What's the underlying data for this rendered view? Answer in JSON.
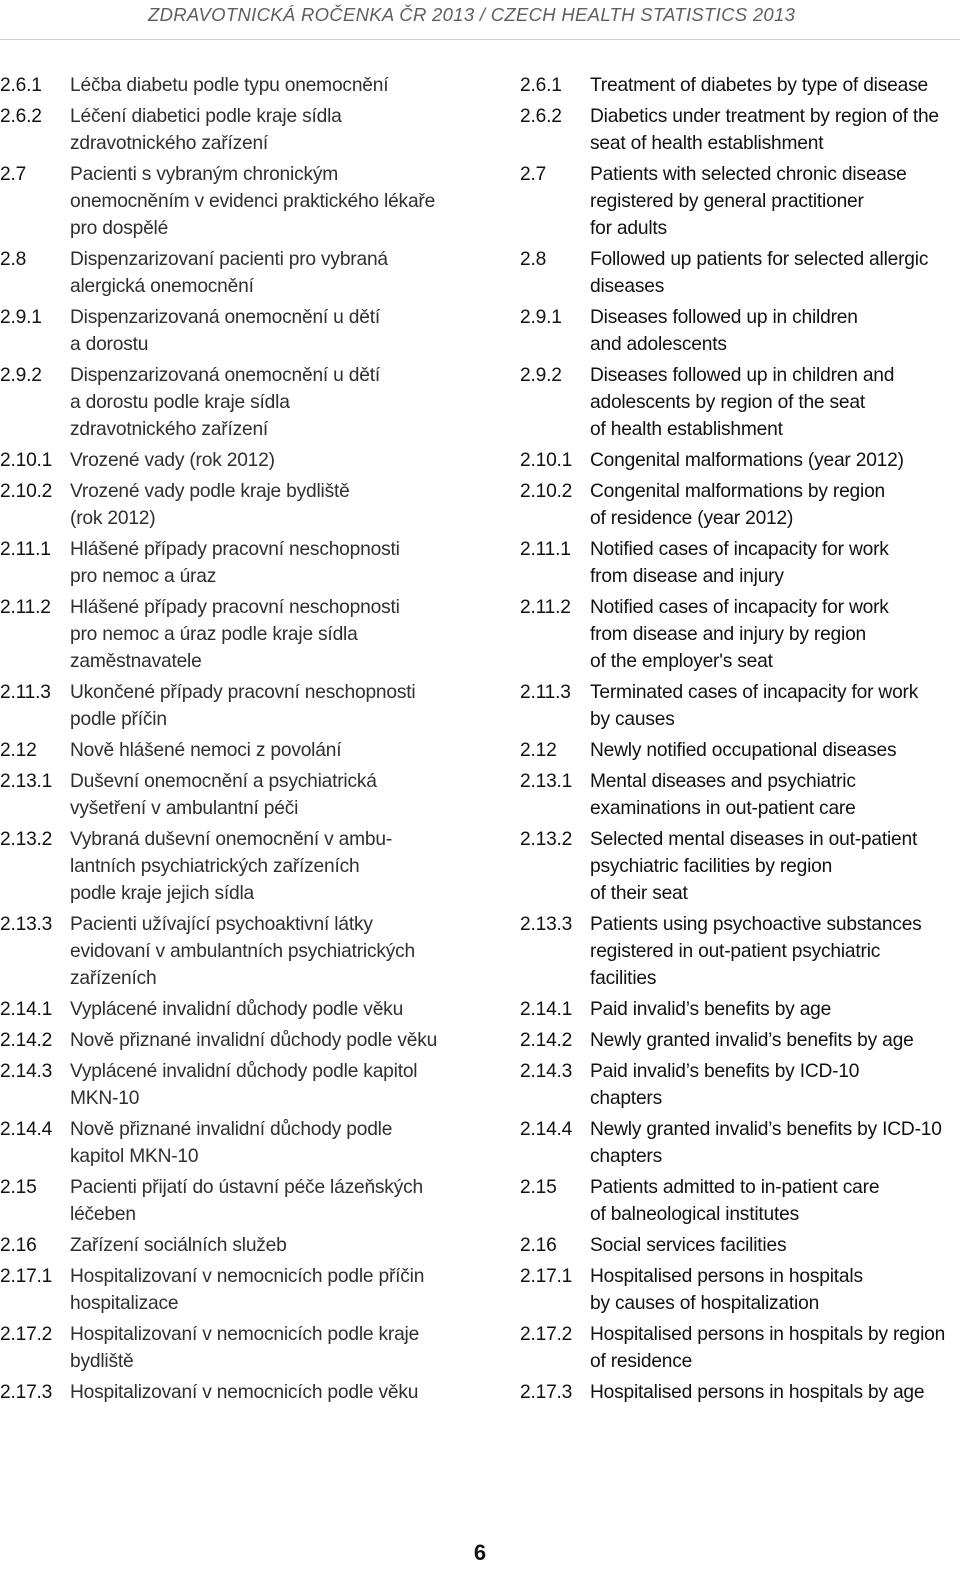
{
  "header": {
    "title": "ZDRAVOTNICKÁ ROČENKA ČR 2013 / CZECH HEALTH STATISTICS 2013"
  },
  "toc": [
    {
      "cz_num": "2.6.1",
      "cz_title": "Léčba diabetu podle typu onemocnění",
      "en_num": "2.6.1",
      "en_title": "Treatment of diabetes by type of disease"
    },
    {
      "cz_num": "2.6.2",
      "cz_title": "Léčení diabetici podle kraje sídla\nzdravotnického zařízení",
      "en_num": "2.6.2",
      "en_title": "Diabetics under treatment by region of the\nseat of health establishment"
    },
    {
      "cz_num": "2.7",
      "cz_title": "Pacienti s vybraným chronickým\nonemocněním v evidenci praktického lékaře\npro dospělé",
      "en_num": "2.7",
      "en_title": "Patients with selected chronic disease\nregistered by general practitioner\nfor adults"
    },
    {
      "cz_num": "2.8",
      "cz_title": "Dispenzarizovaní pacienti pro vybraná\nalergická onemocnění",
      "en_num": "2.8",
      "en_title": "Followed up patients for selected allergic\ndiseases"
    },
    {
      "cz_num": "2.9.1",
      "cz_title": "Dispenzarizovaná onemocnění u dětí\na dorostu",
      "en_num": "2.9.1",
      "en_title": "Diseases followed up in children\nand adolescents"
    },
    {
      "cz_num": "2.9.2",
      "cz_title": "Dispenzarizovaná onemocnění u dětí\na dorostu podle kraje sídla\nzdravotnického zařízení",
      "en_num": "2.9.2",
      "en_title": "Diseases followed up in children and\nadolescents by region of the seat\nof health establishment"
    },
    {
      "cz_num": "2.10.1",
      "cz_title": "Vrozené vady (rok 2012)",
      "en_num": "2.10.1",
      "en_title": "Congenital malformations (year 2012)"
    },
    {
      "cz_num": "2.10.2",
      "cz_title": "Vrozené vady podle kraje bydliště\n(rok 2012)",
      "en_num": "2.10.2",
      "en_title": "Congenital malformations by region\nof residence (year 2012)"
    },
    {
      "cz_num": "2.11.1",
      "cz_title": "Hlášené případy pracovní neschopnosti\npro nemoc a úraz",
      "en_num": "2.11.1",
      "en_title": "Notified cases of incapacity for work\nfrom disease and injury"
    },
    {
      "cz_num": "2.11.2",
      "cz_title": "Hlášené případy pracovní neschopnosti\npro nemoc a úraz podle kraje sídla\nzaměstnavatele",
      "en_num": "2.11.2",
      "en_title": "Notified cases of incapacity for work\nfrom disease and injury by region\nof the employer's seat"
    },
    {
      "cz_num": "2.11.3",
      "cz_title": "Ukončené případy pracovní neschopnosti\npodle příčin",
      "en_num": "2.11.3",
      "en_title": "Terminated cases of incapacity for work\nby causes"
    },
    {
      "cz_num": "2.12",
      "cz_title": "Nově hlášené nemoci z povolání",
      "en_num": "2.12",
      "en_title": "Newly notified occupational diseases"
    },
    {
      "cz_num": "2.13.1",
      "cz_title": "Duševní onemocnění a psychiatrická\nvyšetření v ambulantní péči",
      "en_num": "2.13.1",
      "en_title": "Mental diseases and psychiatric\nexaminations in out-patient care"
    },
    {
      "cz_num": "2.13.2",
      "cz_title": "Vybraná duševní onemocnění v ambu-\nlantních psychiatrických zařízeních\npodle kraje jejich sídla",
      "en_num": "2.13.2",
      "en_title": "Selected mental diseases in out-patient\npsychiatric facilities by region\nof their seat"
    },
    {
      "cz_num": "2.13.3",
      "cz_title": "Pacienti užívající psychoaktivní látky\nevidovaní v ambulantních psychiatrických\nzařízeních",
      "en_num": "2.13.3",
      "en_title": "Patients using psychoactive substances\nregistered in out-patient psychiatric\nfacilities"
    },
    {
      "cz_num": "2.14.1",
      "cz_title": "Vyplácené invalidní důchody podle věku",
      "en_num": "2.14.1",
      "en_title": "Paid invalid’s benefits by age"
    },
    {
      "cz_num": "2.14.2",
      "cz_title": "Nově přiznané invalidní důchody podle věku",
      "en_num": "2.14.2",
      "en_title": "Newly granted invalid’s benefits by age"
    },
    {
      "cz_num": "2.14.3",
      "cz_title": "Vyplácené invalidní důchody podle kapitol\nMKN-10",
      "en_num": "2.14.3",
      "en_title": "Paid invalid’s benefits by ICD-10\nchapters"
    },
    {
      "cz_num": "2.14.4",
      "cz_title": "Nově přiznané invalidní důchody podle\nkapitol MKN-10",
      "en_num": "2.14.4",
      "en_title": "Newly granted invalid’s benefits by ICD-10\nchapters"
    },
    {
      "cz_num": "2.15",
      "cz_title": "Pacienti přijatí do ústavní péče lázeňských\nléčeben",
      "en_num": "2.15",
      "en_title": "Patients admitted to in-patient care\nof balneological institutes"
    },
    {
      "cz_num": "2.16",
      "cz_title": "Zařízení sociálních služeb",
      "en_num": "2.16",
      "en_title": "Social services facilities"
    },
    {
      "cz_num": "2.17.1",
      "cz_title": "Hospitalizovaní v nemocnicích podle příčin\nhospitalizace",
      "en_num": "2.17.1",
      "en_title": "Hospitalised persons in hospitals\nby causes of hospitalization"
    },
    {
      "cz_num": "2.17.2",
      "cz_title": "Hospitalizovaní v nemocnicích podle kraje\nbydliště",
      "en_num": "2.17.2",
      "en_title": "Hospitalised persons in hospitals by region\nof residence"
    },
    {
      "cz_num": "2.17.3",
      "cz_title": "Hospitalizovaní v nemocnicích podle věku",
      "en_num": "2.17.3",
      "en_title": "Hospitalised persons in hospitals by age"
    }
  ],
  "page_number": "6"
}
